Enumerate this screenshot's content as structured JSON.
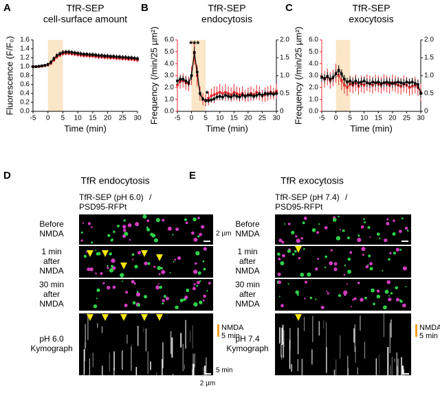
{
  "chart_data": [
    {
      "type": "line",
      "panel": "A",
      "title": [
        "TfR-SEP",
        "cell-surface amount"
      ],
      "x_label": "Time (min)",
      "y_label": "Fluorescence (F/F₀)",
      "xlim": [
        -5,
        30
      ],
      "xticks": [
        -5,
        0,
        5,
        10,
        15,
        20,
        25,
        30
      ],
      "ylim": [
        0,
        1.6
      ],
      "yticks": [
        {
          "value": 0,
          "label": "0.0"
        },
        0.2,
        0.4,
        0.6,
        0.8,
        {
          "value": 1,
          "label": "1.0"
        },
        1.2,
        1.4,
        1.6
      ],
      "shade": [
        0,
        5
      ],
      "x": [
        -5,
        -4,
        -3,
        -2,
        -1,
        0,
        1,
        2,
        3,
        4,
        5,
        6,
        7,
        8,
        9,
        10,
        11,
        12,
        13,
        14,
        15,
        16,
        17,
        18,
        19,
        20,
        21,
        22,
        23,
        24,
        25,
        26,
        27,
        28,
        29,
        30
      ],
      "series": [
        {
          "color": "#e8262a",
          "values": [
            1.0,
            1.0,
            1.0,
            1.01,
            1.02,
            1.04,
            1.08,
            1.15,
            1.22,
            1.26,
            1.29,
            1.3,
            1.3,
            1.29,
            1.28,
            1.27,
            1.26,
            1.25,
            1.25,
            1.24,
            1.24,
            1.23,
            1.22,
            1.22,
            1.21,
            1.21,
            1.2,
            1.2,
            1.19,
            1.19,
            1.18,
            1.18,
            1.17,
            1.17,
            1.16,
            1.15
          ],
          "errors": [
            0.03,
            0.03,
            0.03,
            0.03,
            0.03,
            0.04,
            0.05,
            0.05,
            0.05,
            0.05,
            0.05,
            0.05,
            0.05,
            0.05,
            0.05,
            0.05,
            0.05,
            0.05,
            0.05,
            0.05,
            0.05,
            0.05,
            0.05,
            0.05,
            0.05,
            0.05,
            0.05,
            0.05,
            0.05,
            0.05,
            0.05,
            0.05,
            0.05,
            0.05,
            0.05,
            0.05
          ]
        },
        {
          "color": "#000000",
          "values": [
            1.0,
            1.0,
            1.01,
            1.02,
            1.03,
            1.05,
            1.1,
            1.18,
            1.25,
            1.29,
            1.32,
            1.33,
            1.33,
            1.32,
            1.31,
            1.3,
            1.29,
            1.28,
            1.28,
            1.27,
            1.27,
            1.26,
            1.25,
            1.25,
            1.24,
            1.24,
            1.23,
            1.23,
            1.22,
            1.22,
            1.21,
            1.21,
            1.2,
            1.2,
            1.19,
            1.18
          ],
          "errors": [
            0.03,
            0.03,
            0.03,
            0.03,
            0.03,
            0.04,
            0.05,
            0.05,
            0.05,
            0.05,
            0.05,
            0.05,
            0.05,
            0.05,
            0.05,
            0.05,
            0.05,
            0.05,
            0.05,
            0.05,
            0.05,
            0.05,
            0.05,
            0.05,
            0.05,
            0.05,
            0.05,
            0.05,
            0.05,
            0.05,
            0.05,
            0.05,
            0.05,
            0.05,
            0.05,
            0.05
          ]
        }
      ]
    },
    {
      "type": "line",
      "panel": "B",
      "title": [
        "TfR-SEP",
        "endocytosis"
      ],
      "x_label": "Time (min)",
      "y_label": "Frequency (/min/25 µm²)",
      "xlim": [
        -5,
        30
      ],
      "xticks": [
        -5,
        0,
        5,
        10,
        15,
        20,
        25,
        30
      ],
      "ylim": [
        0,
        6
      ],
      "yticks": [
        {
          "value": 0,
          "label": "0.0"
        },
        {
          "value": 1,
          "label": "1.0"
        },
        {
          "value": 2,
          "label": "2.0"
        },
        {
          "value": 3,
          "label": "3.0"
        },
        {
          "value": 4,
          "label": "4.0"
        },
        {
          "value": 5,
          "label": "5.0"
        },
        {
          "value": 6,
          "label": "6.0"
        }
      ],
      "y2lim": [
        0,
        2
      ],
      "y2ticks": [
        0,
        0.5,
        {
          "value": 1,
          "label": "1.0"
        },
        1.5,
        {
          "value": 2,
          "label": "2.0"
        }
      ],
      "shade": [
        0,
        5
      ],
      "annotations": [
        "***",
        "*"
      ],
      "x": [
        -5,
        -4,
        -3,
        -2,
        -1,
        0,
        1,
        2,
        3,
        4,
        5,
        6,
        7,
        8,
        9,
        10,
        11,
        12,
        13,
        14,
        15,
        16,
        17,
        18,
        19,
        20,
        21,
        22,
        23,
        24,
        25,
        26,
        27,
        28,
        29,
        30
      ],
      "series": [
        {
          "color": "#e8262a",
          "values": [
            2.2,
            2.5,
            2.6,
            2.4,
            2.3,
            3.0,
            4.9,
            3.0,
            1.5,
            1.0,
            0.9,
            1.1,
            1.3,
            1.4,
            1.5,
            1.6,
            1.5,
            1.6,
            1.5,
            1.4,
            1.6,
            1.5,
            1.4,
            1.5,
            1.3,
            1.4,
            1.5,
            1.4,
            1.6,
            1.5,
            1.3,
            1.4,
            1.5,
            1.6,
            1.5,
            1.7
          ],
          "errors": [
            0.6,
            0.6,
            0.6,
            0.6,
            0.6,
            0.8,
            1.0,
            0.9,
            0.6,
            0.5,
            0.5,
            0.6,
            0.6,
            0.7,
            0.6,
            0.7,
            0.6,
            0.7,
            0.6,
            0.6,
            0.7,
            0.6,
            0.6,
            0.6,
            0.5,
            0.6,
            0.6,
            0.5,
            0.6,
            0.6,
            0.5,
            0.6,
            0.6,
            0.6,
            0.5,
            0.6
          ]
        },
        {
          "color": "#000000",
          "axis": "y2",
          "values": [
            0.85,
            0.9,
            0.9,
            0.85,
            0.8,
            1.0,
            1.65,
            1.1,
            0.5,
            0.35,
            0.3,
            0.3,
            0.32,
            0.35,
            0.4,
            0.42,
            0.4,
            0.45,
            0.42,
            0.4,
            0.45,
            0.42,
            0.4,
            0.45,
            0.42,
            0.45,
            0.45,
            0.42,
            0.45,
            0.48,
            0.45,
            0.5,
            0.48,
            0.5,
            0.48,
            0.5
          ],
          "errors": [
            0.1,
            0.1,
            0.1,
            0.1,
            0.1,
            0.12,
            0.15,
            0.12,
            0.08,
            0.06,
            0.06,
            0.06,
            0.06,
            0.07,
            0.07,
            0.08,
            0.08,
            0.08,
            0.08,
            0.08,
            0.08,
            0.08,
            0.08,
            0.08,
            0.08,
            0.08,
            0.08,
            0.08,
            0.08,
            0.08,
            0.08,
            0.08,
            0.08,
            0.08,
            0.08,
            0.08
          ]
        }
      ]
    },
    {
      "type": "line",
      "panel": "C",
      "title": [
        "TfR-SEP",
        "exocytosis"
      ],
      "x_label": "Time (min)",
      "y_label": "Frequency (/min/25 µm²)",
      "xlim": [
        -5,
        30
      ],
      "xticks": [
        -5,
        0,
        5,
        10,
        15,
        20,
        25,
        30
      ],
      "ylim": [
        0,
        6
      ],
      "yticks": [
        {
          "value": 0,
          "label": "0.0"
        },
        {
          "value": 1,
          "label": "1.0"
        },
        {
          "value": 2,
          "label": "2.0"
        },
        {
          "value": 3,
          "label": "3.0"
        },
        {
          "value": 4,
          "label": "4.0"
        },
        {
          "value": 5,
          "label": "5.0"
        },
        {
          "value": 6,
          "label": "6.0"
        }
      ],
      "y2lim": [
        0,
        2
      ],
      "y2ticks": [
        0,
        0.5,
        {
          "value": 1,
          "label": "1.0"
        },
        1.5,
        {
          "value": 2,
          "label": "2.0"
        }
      ],
      "shade": [
        0,
        5
      ],
      "x": [
        -5,
        -4,
        -3,
        -2,
        -1,
        0,
        1,
        2,
        3,
        4,
        5,
        6,
        7,
        8,
        9,
        10,
        11,
        12,
        13,
        14,
        15,
        16,
        17,
        18,
        19,
        20,
        21,
        22,
        23,
        24,
        25,
        26,
        27,
        28,
        29,
        30
      ],
      "series": [
        {
          "color": "#e8262a",
          "values": [
            2.9,
            2.7,
            2.9,
            2.6,
            2.8,
            3.2,
            3.0,
            2.6,
            2.2,
            2.0,
            2.3,
            2.2,
            2.4,
            2.1,
            2.3,
            2.2,
            2.4,
            2.3,
            2.2,
            2.4,
            2.3,
            2.2,
            2.4,
            2.3,
            2.2,
            2.4,
            2.3,
            2.2,
            2.1,
            2.3,
            2.2,
            2.0,
            2.1,
            2.2,
            2.0,
            1.6
          ],
          "errors": [
            0.7,
            0.7,
            0.7,
            0.7,
            0.7,
            0.8,
            0.8,
            0.8,
            0.7,
            0.7,
            0.7,
            0.7,
            0.7,
            0.7,
            0.7,
            0.7,
            0.7,
            0.7,
            0.7,
            0.7,
            0.7,
            0.7,
            0.7,
            0.7,
            0.7,
            0.7,
            0.7,
            0.7,
            0.7,
            0.7,
            0.7,
            0.7,
            0.7,
            0.7,
            0.7,
            0.7
          ]
        },
        {
          "color": "#000000",
          "axis": "y2",
          "values": [
            0.95,
            0.92,
            0.98,
            0.9,
            0.95,
            1.05,
            1.15,
            1.05,
            0.9,
            0.82,
            0.85,
            0.8,
            0.85,
            0.8,
            0.82,
            0.85,
            0.8,
            0.78,
            0.82,
            0.8,
            0.82,
            0.78,
            0.8,
            0.82,
            0.8,
            0.78,
            0.8,
            0.82,
            0.8,
            0.78,
            0.82,
            0.8,
            0.82,
            0.78,
            0.75,
            0.5
          ],
          "errors": [
            0.12,
            0.12,
            0.12,
            0.12,
            0.12,
            0.12,
            0.14,
            0.12,
            0.12,
            0.12,
            0.12,
            0.12,
            0.12,
            0.12,
            0.12,
            0.12,
            0.12,
            0.12,
            0.12,
            0.12,
            0.12,
            0.12,
            0.12,
            0.12,
            0.12,
            0.12,
            0.12,
            0.12,
            0.12,
            0.12,
            0.12,
            0.12,
            0.12,
            0.12,
            0.12,
            0.12
          ]
        }
      ]
    }
  ],
  "panel_d": {
    "letter": "D",
    "title": "TfR endocytosis",
    "legend_green": "TfR-SEP (pH 6.0)",
    "legend_slash": "/",
    "legend_magenta": "PSD95-RFPt",
    "rows": [
      [
        "Before",
        "NMDA"
      ],
      [
        "1 min",
        "after",
        "NMDA"
      ],
      [
        "30 min",
        "after",
        "NMDA"
      ],
      [
        "pH 6.0",
        "Kymograph"
      ]
    ],
    "scale_image": "2 µm",
    "nmda": [
      "NMDA",
      "5 min"
    ],
    "scale_time": "5 min",
    "scale_space": "2 µm"
  },
  "panel_e": {
    "letter": "E",
    "title": "TfR exocytosis",
    "legend_green": "TfR-SEP (pH 7.4)",
    "legend_slash": "/",
    "legend_magenta": "PSD95-RFPt",
    "rows": [
      [
        "Before",
        "NMDA"
      ],
      [
        "1 min",
        "after",
        "NMDA"
      ],
      [
        "30 min",
        "after",
        "NMDA"
      ],
      [
        "pH 7.4",
        "Kymograph"
      ]
    ],
    "nmda": [
      "NMDA",
      "5 min"
    ]
  }
}
